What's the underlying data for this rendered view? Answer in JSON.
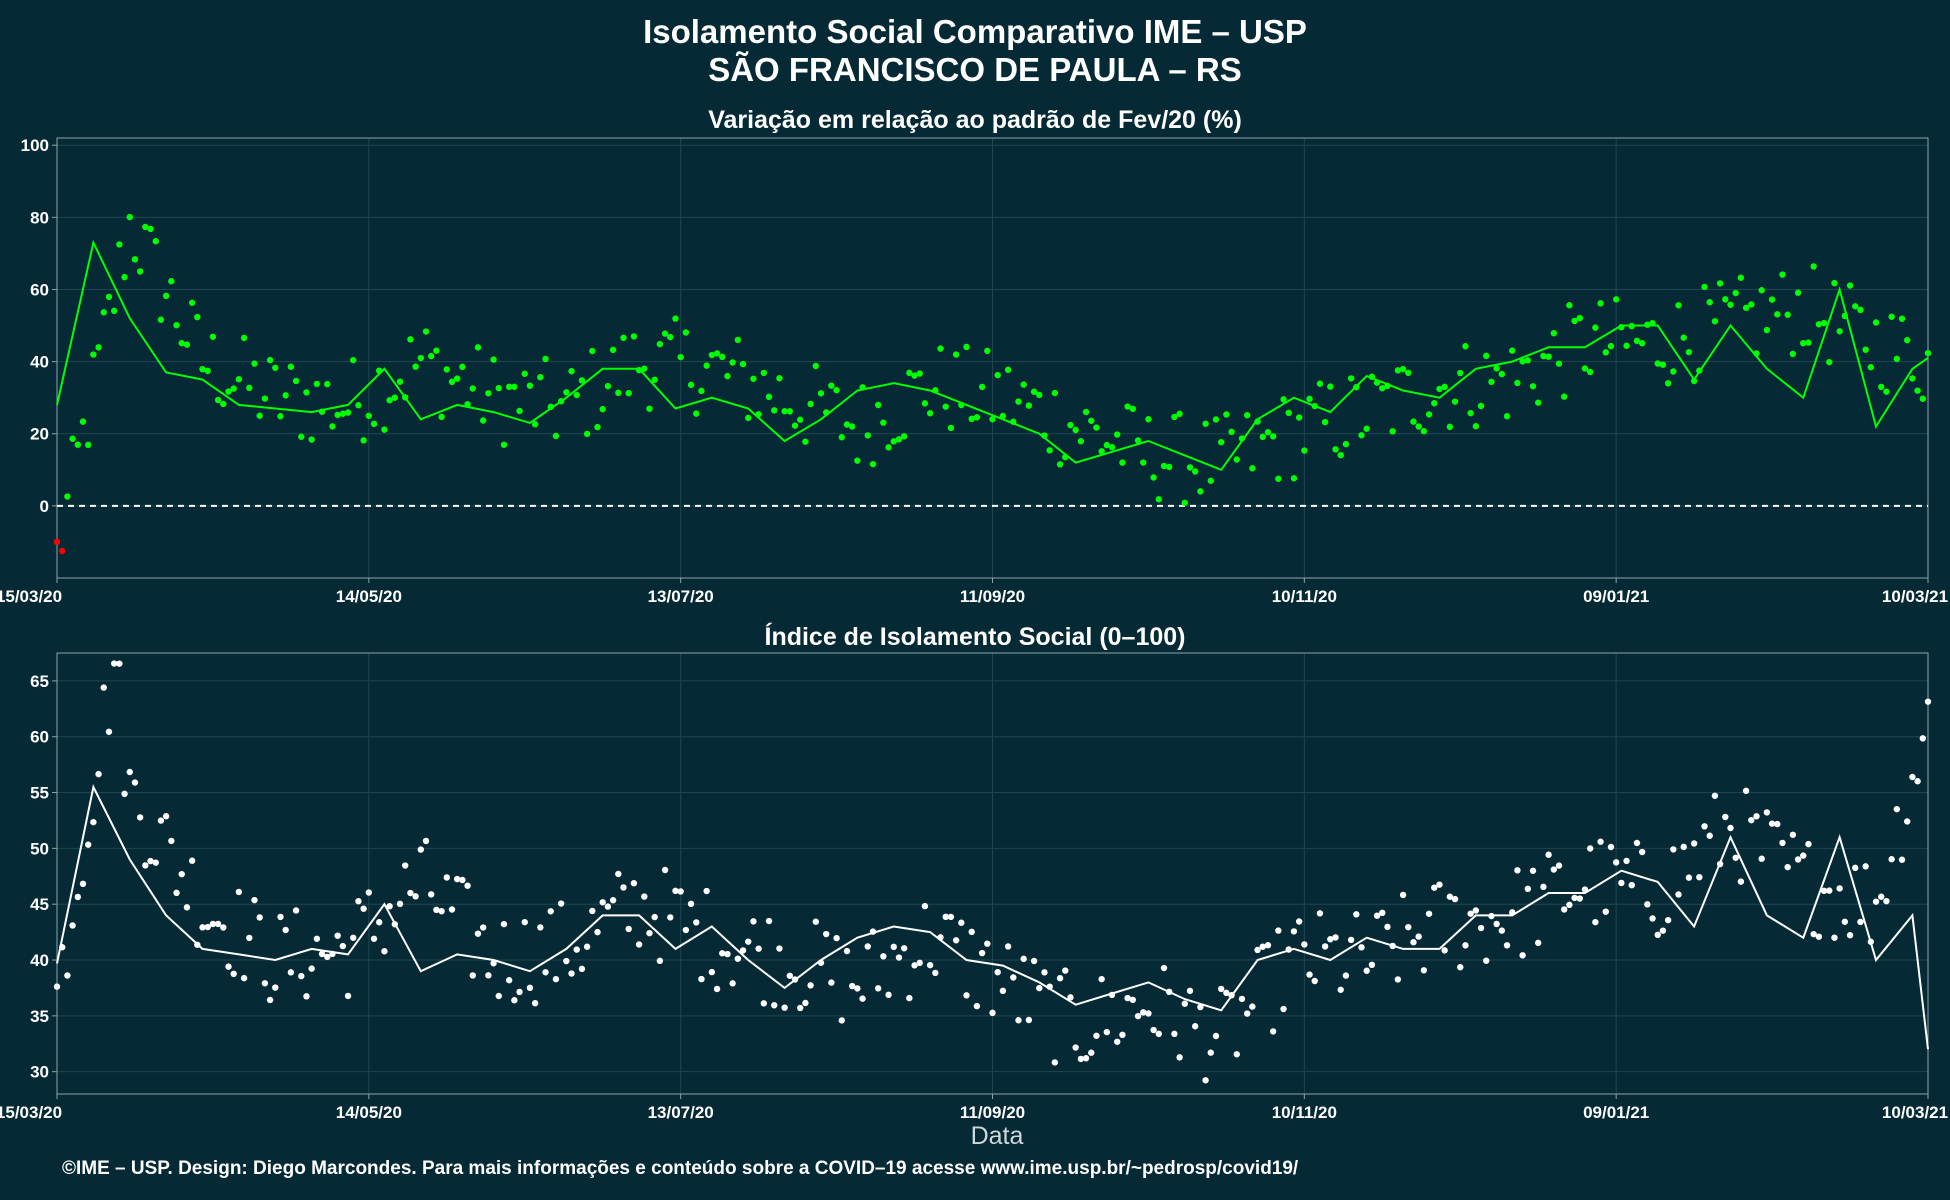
{
  "header": {
    "title_line1": "Isolamento Social Comparativo IME – USP",
    "title_line2": "SÃO FRANCISCO DE PAULA – RS"
  },
  "caption": "©IME – USP. Design: Diego Marcondes. Para mais informações e conteúdo sobre a COVID–19 acesse www.ime.usp.br/~pedrosp/covid19/",
  "colors": {
    "background": "#052a35",
    "positive": "#00ff00",
    "negative": "#ff0000",
    "index": "#ffffff",
    "grid": "#1f4652"
  },
  "chart_data": [
    {
      "type": "scatter",
      "title": "Variação em relação ao padrão de Fev/20 (%)",
      "xlabel": "",
      "ylabel": "",
      "x_range": [
        "15/03/20",
        "10/03/21"
      ],
      "x_ticks": [
        "15/03/20",
        "14/05/20",
        "13/07/20",
        "11/09/20",
        "10/11/20",
        "09/01/21",
        "10/03/21"
      ],
      "ylim": [
        -20,
        102
      ],
      "y_ticks": [
        0,
        20,
        40,
        60,
        80,
        100
      ],
      "reference_line": 0,
      "series": [
        {
          "kind": "daily points",
          "x": [
            "15/03/20",
            "29/03/20",
            "12/04/20",
            "26/04/20",
            "10/05/20",
            "24/05/20",
            "07/06/20",
            "21/06/20",
            "05/07/20",
            "19/07/20",
            "02/08/20",
            "16/08/20",
            "30/08/20",
            "13/09/20",
            "27/09/20",
            "11/10/20",
            "25/10/20",
            "08/11/20",
            "22/11/20",
            "06/12/20",
            "20/12/20",
            "03/01/21",
            "17/01/21",
            "31/01/21",
            "14/02/21",
            "28/02/21",
            "10/03/21"
          ],
          "y": [
            -14,
            78,
            40,
            30,
            28,
            40,
            30,
            27,
            40,
            38,
            30,
            22,
            33,
            30,
            22,
            14,
            12,
            20,
            26,
            33,
            35,
            45,
            45,
            50,
            55,
            45,
            40
          ]
        },
        {
          "kind": "moving average",
          "x": [
            "15/03/20",
            "22/03/20",
            "29/03/20",
            "05/04/20",
            "12/04/20",
            "19/04/20",
            "26/04/20",
            "03/05/20",
            "10/05/20",
            "17/05/20",
            "24/05/20",
            "31/05/20",
            "07/06/20",
            "14/06/20",
            "21/06/20",
            "28/06/20",
            "05/07/20",
            "12/07/20",
            "19/07/20",
            "26/07/20",
            "02/08/20",
            "09/08/20",
            "16/08/20",
            "23/08/20",
            "30/08/20",
            "06/09/20",
            "13/09/20",
            "20/09/20",
            "27/09/20",
            "04/10/20",
            "11/10/20",
            "18/10/20",
            "25/10/20",
            "01/11/20",
            "08/11/20",
            "15/11/20",
            "22/11/20",
            "29/11/20",
            "06/12/20",
            "13/12/20",
            "20/12/20",
            "27/12/20",
            "03/01/21",
            "10/01/21",
            "17/01/21",
            "24/01/21",
            "31/01/21",
            "07/02/21",
            "14/02/21",
            "21/02/21",
            "28/02/21",
            "07/03/21",
            "10/03/21"
          ],
          "y": [
            28,
            73,
            52,
            37,
            35,
            28,
            27,
            26,
            28,
            38,
            24,
            28,
            26,
            23,
            30,
            38,
            38,
            27,
            30,
            27,
            18,
            24,
            32,
            34,
            32,
            28,
            24,
            20,
            12,
            15,
            18,
            14,
            10,
            24,
            30,
            26,
            36,
            32,
            30,
            38,
            40,
            44,
            44,
            50,
            50,
            35,
            50,
            38,
            30,
            60,
            22,
            38,
            41
          ]
        }
      ]
    },
    {
      "type": "scatter",
      "title": "Índice de Isolamento Social (0–100)",
      "xlabel": "Data",
      "ylabel": "",
      "x_range": [
        "15/03/20",
        "10/03/21"
      ],
      "x_ticks": [
        "15/03/20",
        "14/05/20",
        "13/07/20",
        "11/09/20",
        "10/11/20",
        "09/01/21",
        "10/03/21"
      ],
      "ylim": [
        28,
        67.5
      ],
      "y_ticks": [
        30,
        35,
        40,
        45,
        50,
        55,
        60,
        65
      ],
      "series": [
        {
          "kind": "daily points",
          "x": [
            "15/03/20",
            "26/03/20",
            "29/03/20",
            "12/04/20",
            "26/04/20",
            "10/05/20",
            "24/05/20",
            "07/06/20",
            "21/06/20",
            "05/07/20",
            "19/07/20",
            "02/08/20",
            "16/08/20",
            "30/08/20",
            "13/09/20",
            "27/09/20",
            "11/10/20",
            "25/10/20",
            "08/11/20",
            "22/11/20",
            "06/12/20",
            "20/12/20",
            "03/01/21",
            "17/01/21",
            "31/01/21",
            "14/02/21",
            "28/02/21",
            "10/03/21"
          ],
          "y": [
            37,
            66.7,
            55,
            45,
            40,
            41,
            47,
            40,
            41,
            45,
            42,
            40,
            38,
            42,
            38,
            34,
            36,
            33,
            40,
            40,
            43,
            44,
            47,
            46,
            52,
            47,
            45,
            61.5
          ]
        },
        {
          "kind": "moving average",
          "x": [
            "15/03/20",
            "22/03/20",
            "29/03/20",
            "05/04/20",
            "12/04/20",
            "19/04/20",
            "26/04/20",
            "03/05/20",
            "10/05/20",
            "17/05/20",
            "24/05/20",
            "31/05/20",
            "07/06/20",
            "14/06/20",
            "21/06/20",
            "28/06/20",
            "05/07/20",
            "12/07/20",
            "19/07/20",
            "26/07/20",
            "02/08/20",
            "09/08/20",
            "16/08/20",
            "23/08/20",
            "30/08/20",
            "06/09/20",
            "13/09/20",
            "20/09/20",
            "27/09/20",
            "04/10/20",
            "11/10/20",
            "18/10/20",
            "25/10/20",
            "01/11/20",
            "08/11/20",
            "15/11/20",
            "22/11/20",
            "29/11/20",
            "06/12/20",
            "13/12/20",
            "20/12/20",
            "27/12/20",
            "03/01/21",
            "10/01/21",
            "17/01/21",
            "24/01/21",
            "31/01/21",
            "07/02/21",
            "14/02/21",
            "21/02/21",
            "28/02/21",
            "07/03/21",
            "10/03/21"
          ],
          "y": [
            39.7,
            55.5,
            49,
            44,
            41,
            40.5,
            40,
            41,
            40.5,
            45,
            39,
            40.5,
            40,
            39,
            41,
            44,
            44,
            41,
            43,
            40,
            37.5,
            40,
            42,
            43,
            42.5,
            40,
            39.5,
            38,
            36,
            37,
            38,
            36.5,
            35.5,
            40,
            41,
            40,
            42,
            41,
            41,
            44,
            44,
            46,
            46,
            48,
            47,
            43,
            51,
            44,
            42,
            51,
            40,
            44,
            32
          ]
        }
      ]
    }
  ]
}
